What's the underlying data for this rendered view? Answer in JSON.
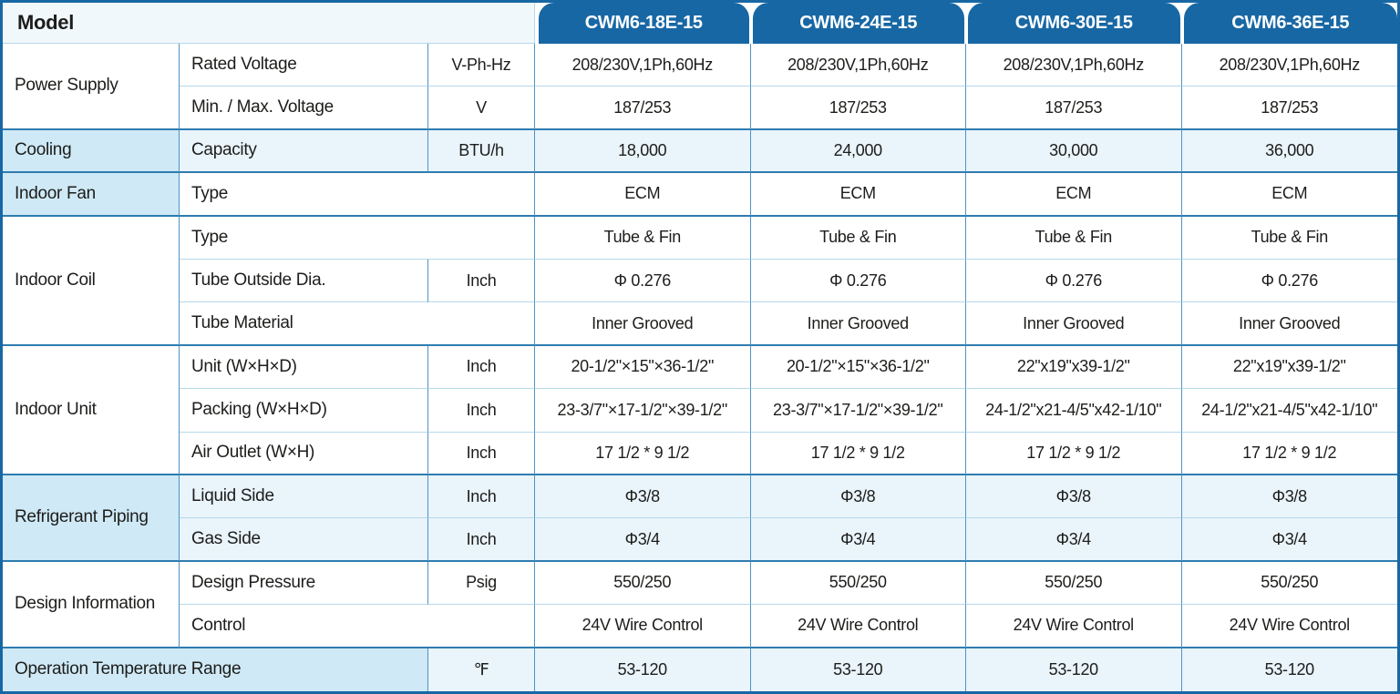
{
  "colors": {
    "header_blue": "#1767a4",
    "section_fill": "#cfe9f6",
    "row_tint": "#e9f4fb",
    "grid_light": "#b5d8ea",
    "grid_dark": "#2e7cb0",
    "text": "#1d1d1b"
  },
  "table": {
    "model_label": "Model",
    "models": [
      "CWM6-18E-15",
      "CWM6-24E-15",
      "CWM6-30E-15",
      "CWM6-36E-15"
    ],
    "sections": [
      {
        "name": "Power Supply",
        "fill": false,
        "rows": [
          {
            "param": "Rated Voltage",
            "unit": "V-Ph-Hz",
            "tint": false,
            "values": [
              "208/230V,1Ph,60Hz",
              "208/230V,1Ph,60Hz",
              "208/230V,1Ph,60Hz",
              "208/230V,1Ph,60Hz"
            ]
          },
          {
            "param": "Min. / Max. Voltage",
            "unit": "V",
            "tint": false,
            "values": [
              "187/253",
              "187/253",
              "187/253",
              "187/253"
            ]
          }
        ]
      },
      {
        "name": "Cooling",
        "fill": true,
        "rows": [
          {
            "param": "Capacity",
            "unit": "BTU/h",
            "tint": true,
            "values": [
              "18,000",
              "24,000",
              "30,000",
              "36,000"
            ]
          }
        ]
      },
      {
        "name": "Indoor Fan",
        "fill": true,
        "rows": [
          {
            "param": "Type",
            "unit": null,
            "tint": false,
            "values": [
              "ECM",
              "ECM",
              "ECM",
              "ECM"
            ]
          }
        ]
      },
      {
        "name": "Indoor Coil",
        "fill": false,
        "rows": [
          {
            "param": "Type",
            "unit": null,
            "tint": false,
            "values": [
              "Tube & Fin",
              "Tube & Fin",
              "Tube & Fin",
              "Tube & Fin"
            ]
          },
          {
            "param": "Tube Outside Dia.",
            "unit": "Inch",
            "tint": false,
            "values": [
              "Φ 0.276",
              "Φ 0.276",
              "Φ 0.276",
              "Φ 0.276"
            ]
          },
          {
            "param": "Tube Material",
            "unit": null,
            "tint": false,
            "values": [
              "Inner Grooved",
              "Inner Grooved",
              "Inner Grooved",
              "Inner Grooved"
            ]
          }
        ]
      },
      {
        "name": "Indoor Unit",
        "fill": false,
        "rows": [
          {
            "param": "Unit (W×H×D)",
            "unit": "Inch",
            "tint": false,
            "values": [
              "20-1/2\"×15\"×36-1/2\"",
              "20-1/2\"×15\"×36-1/2\"",
              "22\"x19\"x39-1/2\"",
              "22\"x19\"x39-1/2\""
            ]
          },
          {
            "param": "Packing (W×H×D)",
            "unit": "Inch",
            "tint": false,
            "values": [
              "23-3/7\"×17-1/2\"×39-1/2\"",
              "23-3/7\"×17-1/2\"×39-1/2\"",
              "24-1/2\"x21-4/5\"x42-1/10\"",
              "24-1/2\"x21-4/5\"x42-1/10\""
            ]
          },
          {
            "param": "Air Outlet (W×H)",
            "unit": "Inch",
            "tint": false,
            "values": [
              "17 1/2 * 9 1/2",
              "17 1/2 * 9 1/2",
              "17 1/2 * 9 1/2",
              "17 1/2 * 9 1/2"
            ]
          }
        ]
      },
      {
        "name": "Refrigerant Piping",
        "fill": true,
        "rows": [
          {
            "param": "Liquid Side",
            "unit": "Inch",
            "tint": true,
            "values": [
              "Φ3/8",
              "Φ3/8",
              "Φ3/8",
              "Φ3/8"
            ]
          },
          {
            "param": "Gas Side",
            "unit": "Inch",
            "tint": true,
            "values": [
              "Φ3/4",
              "Φ3/4",
              "Φ3/4",
              "Φ3/4"
            ]
          }
        ]
      },
      {
        "name": "Design Information",
        "fill": false,
        "rows": [
          {
            "param": "Design Pressure",
            "unit": "Psig",
            "tint": false,
            "values": [
              "550/250",
              "550/250",
              "550/250",
              "550/250"
            ]
          },
          {
            "param": "Control",
            "unit": null,
            "tint": false,
            "values": [
              "24V Wire Control",
              "24V Wire Control",
              "24V Wire Control",
              "24V Wire Control"
            ]
          }
        ]
      },
      {
        "name": "Operation Temperature Range",
        "fill": true,
        "span_label": true,
        "rows": [
          {
            "param": null,
            "unit": "℉",
            "tint": true,
            "values": [
              "53-120",
              "53-120",
              "53-120",
              "53-120"
            ]
          }
        ]
      }
    ]
  }
}
